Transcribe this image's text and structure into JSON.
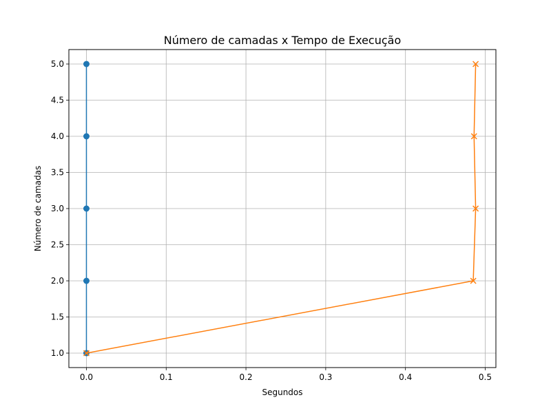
{
  "chart_data": {
    "type": "line",
    "title": "Número de camadas x Tempo de Execução",
    "xlabel": "Segundos",
    "ylabel": "Número de camadas",
    "xlim": [
      -0.022,
      0.5134
    ],
    "ylim": [
      0.8,
      5.2
    ],
    "grid": true,
    "xticks": [
      0.0,
      0.1,
      0.2,
      0.3,
      0.4,
      0.5
    ],
    "xtick_labels": [
      "0.0",
      "0.1",
      "0.2",
      "0.3",
      "0.4",
      "0.5"
    ],
    "yticks": [
      1.0,
      1.5,
      2.0,
      2.5,
      3.0,
      3.5,
      4.0,
      4.5,
      5.0
    ],
    "ytick_labels": [
      "1.0",
      "1.5",
      "2.0",
      "2.5",
      "3.0",
      "3.5",
      "4.0",
      "4.5",
      "5.0"
    ],
    "series": [
      {
        "color": "#1f77b4",
        "marker": "circle",
        "x": [
          0.0,
          0.0,
          0.0,
          0.0,
          0.0
        ],
        "y": [
          1,
          2,
          3,
          4,
          5
        ]
      },
      {
        "color": "#ff7f0e",
        "marker": "x",
        "x": [
          0.0,
          0.485,
          0.488,
          0.486,
          0.488
        ],
        "y": [
          1,
          2,
          3,
          4,
          5
        ]
      }
    ]
  }
}
